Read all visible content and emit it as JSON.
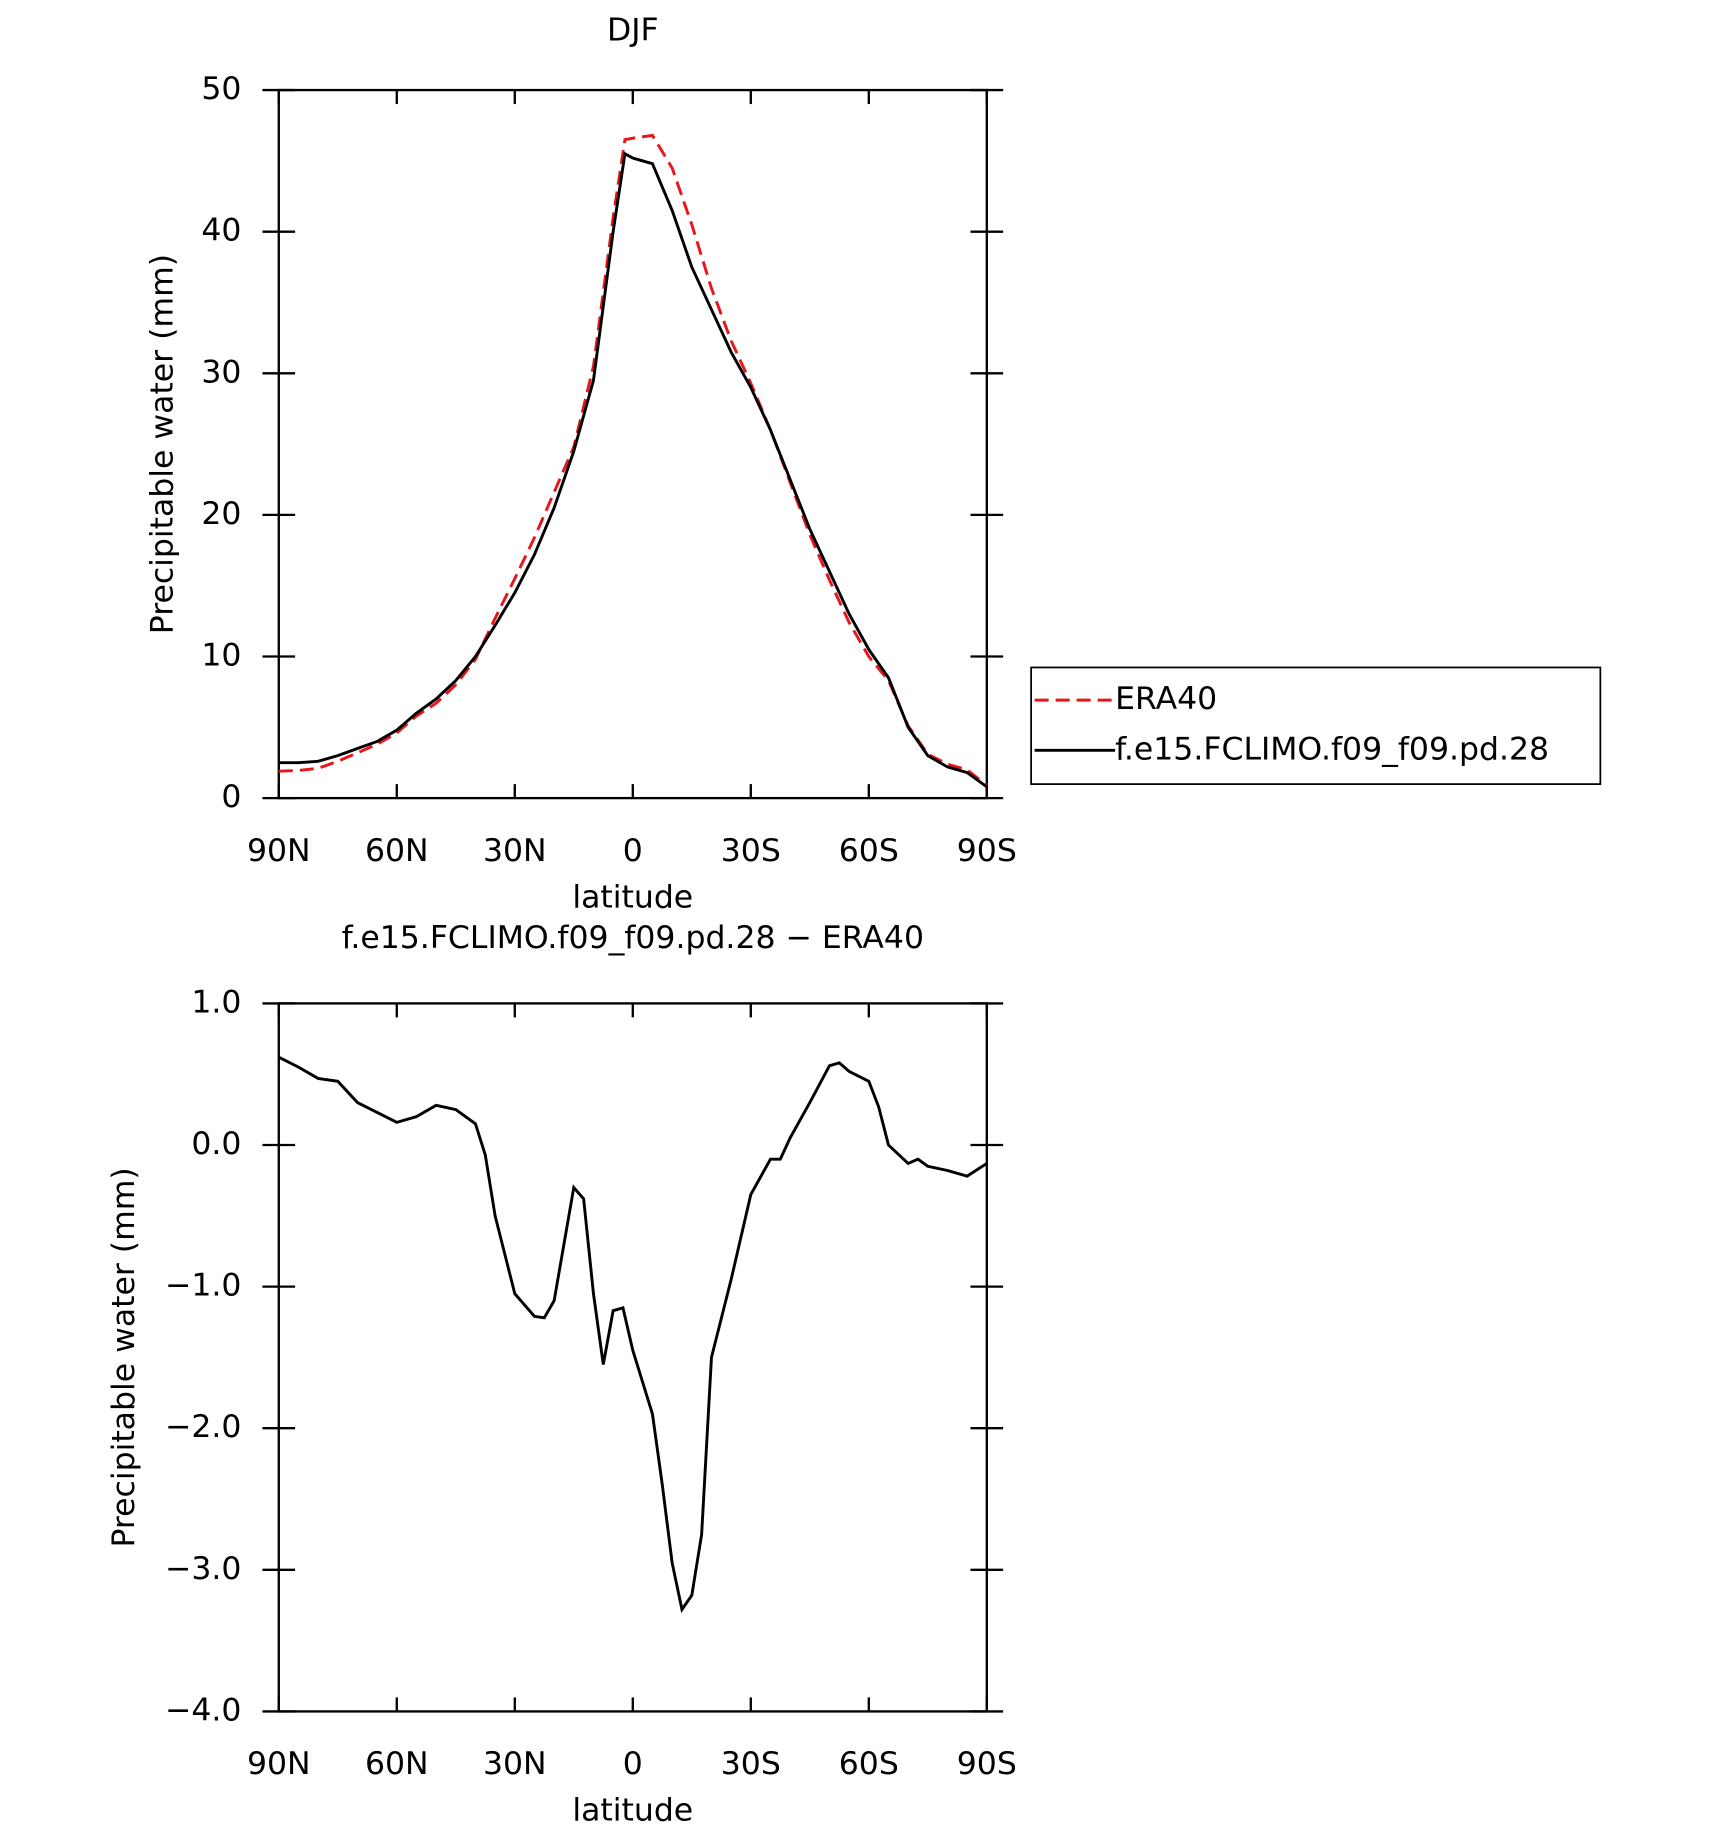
{
  "chart_data": [
    {
      "type": "line",
      "title": "DJF",
      "xlabel": "latitude",
      "ylabel": "Precipitable water (mm)",
      "x": [
        90,
        85,
        80,
        75,
        70,
        65,
        60,
        55,
        50,
        45,
        40,
        35,
        30,
        25,
        20,
        15,
        10,
        5,
        2,
        0,
        -5,
        -10,
        -15,
        -20,
        -25,
        -30,
        -35,
        -40,
        -45,
        -50,
        -55,
        -60,
        -65,
        -70,
        -75,
        -80,
        -85,
        -90
      ],
      "series": [
        {
          "name": "ERA40",
          "color": "#e8161b",
          "line_style": "dashed",
          "values": [
            1.9,
            1.95,
            2.1,
            2.6,
            3.2,
            3.8,
            4.6,
            5.8,
            6.7,
            8.0,
            9.8,
            12.7,
            15.5,
            18.4,
            21.6,
            24.8,
            30.5,
            41,
            46.5,
            46.6,
            46.8,
            44.5,
            40.5,
            36,
            32.3,
            29.3,
            26,
            22.3,
            18.6,
            15.4,
            12.4,
            10.0,
            8.3,
            5.1,
            3.1,
            2.4,
            2.0,
            0.9
          ]
        },
        {
          "name": "f.e15.FCLIMO.f09_f09.pd.28",
          "color": "#000000",
          "line_style": "solid",
          "values": [
            2.5,
            2.5,
            2.6,
            3.0,
            3.5,
            4.0,
            4.8,
            6.0,
            7.0,
            8.3,
            10.0,
            12.2,
            14.5,
            17.2,
            20.5,
            24.5,
            29.5,
            40,
            45.5,
            45.2,
            44.8,
            41.5,
            37.5,
            34.5,
            31.5,
            29,
            26,
            22.5,
            19,
            16,
            13,
            10.5,
            8.5,
            5,
            3,
            2.2,
            1.8,
            0.8
          ]
        }
      ],
      "xlim": [
        90,
        -90
      ],
      "xticks": [
        {
          "value": 90,
          "label": "90N"
        },
        {
          "value": 60,
          "label": "60N"
        },
        {
          "value": 30,
          "label": "30N"
        },
        0,
        {
          "value": -30,
          "label": "30S"
        },
        {
          "value": -60,
          "label": "60S"
        },
        {
          "value": -90,
          "label": "90S"
        }
      ],
      "ylim": [
        0,
        50
      ],
      "yticks": [
        0,
        10,
        20,
        30,
        40,
        50
      ],
      "legend": "right"
    },
    {
      "type": "line",
      "title": "f.e15.FCLIMO.f09_f09.pd.28 − ERA40",
      "xlabel": "latitude",
      "ylabel": "Precipitable water (mm)",
      "x": [
        90,
        85,
        80,
        75,
        70,
        65,
        60,
        55,
        50,
        45,
        40,
        37.5,
        35,
        30,
        25,
        22.5,
        20,
        15,
        12.5,
        10,
        7.5,
        5,
        2.5,
        0,
        -5,
        -7.5,
        -10,
        -12.5,
        -15,
        -17.5,
        -20,
        -25,
        -30,
        -35,
        -37.5,
        -40,
        -45,
        -50,
        -52.5,
        -55,
        -60,
        -62.5,
        -65,
        -70,
        -72.5,
        -75,
        -80,
        -85,
        -90
      ],
      "values": [
        0.62,
        0.55,
        0.47,
        0.45,
        0.3,
        0.23,
        0.16,
        0.2,
        0.28,
        0.25,
        0.15,
        -0.07,
        -0.5,
        -1.05,
        -1.21,
        -1.22,
        -1.1,
        -0.3,
        -0.38,
        -1.05,
        -1.55,
        -1.17,
        -1.15,
        -1.45,
        -1.9,
        -2.4,
        -2.95,
        -3.28,
        -3.18,
        -2.75,
        -1.5,
        -0.95,
        -0.35,
        -0.1,
        -0.1,
        0.05,
        0.3,
        0.56,
        0.58,
        0.52,
        0.45,
        0.27,
        0.0,
        -0.13,
        -0.1,
        -0.15,
        -0.18,
        -0.22,
        -0.13
      ],
      "color": "#000000",
      "xlim": [
        90,
        -90
      ],
      "xticks": [
        {
          "value": 90,
          "label": "90N"
        },
        {
          "value": 60,
          "label": "60N"
        },
        {
          "value": 30,
          "label": "30N"
        },
        0,
        {
          "value": -30,
          "label": "30S"
        },
        {
          "value": -60,
          "label": "60S"
        },
        {
          "value": -90,
          "label": "90S"
        }
      ],
      "ylim": [
        -4,
        1
      ],
      "yticks": [
        {
          "value": -4,
          "label": "−4.0"
        },
        {
          "value": -3,
          "label": "−3.0"
        },
        {
          "value": -2,
          "label": "−2.0"
        },
        {
          "value": -1,
          "label": "−1.0"
        },
        {
          "value": 0,
          "label": "0.0"
        },
        {
          "value": 1,
          "label": "1.0"
        }
      ]
    }
  ]
}
